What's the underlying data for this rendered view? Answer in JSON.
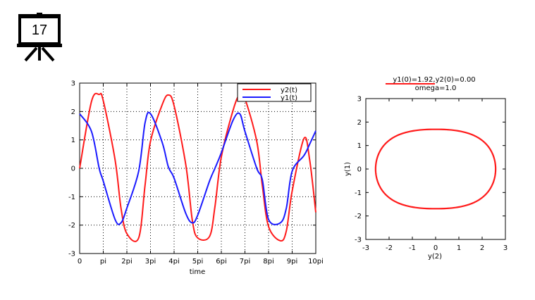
{
  "slide": {
    "number": "17",
    "icon": "projector-screen-icon"
  },
  "colors": {
    "y2": "#ff1a1a",
    "y1": "#1a1aff",
    "phase": "#ff1a1a"
  },
  "chart_data": [
    {
      "type": "line",
      "title": "",
      "xlabel": "time",
      "ylabel": "",
      "xlim": [
        0,
        31.4159
      ],
      "ylim": [
        -3,
        3
      ],
      "grid": true,
      "legend_position": "top-right",
      "x_tick_labels": [
        "0",
        "pi",
        "2pi",
        "3pi",
        "4pi",
        "5pi",
        "6pi",
        "7pi",
        "8pi",
        "9pi",
        "10pi"
      ],
      "y_tick_labels": [
        "-3",
        "-2",
        "-1",
        "0",
        "1",
        "2",
        "3"
      ],
      "x": [
        0,
        1.5708,
        2.6,
        3.1416,
        4.7124,
        5.5,
        6.2832,
        7.854,
        8.7,
        9.4248,
        10.9956,
        11.8,
        12.5664,
        14.1372,
        15.0,
        15.708,
        17.2788,
        18.0,
        18.8496,
        20.4204,
        21.3,
        21.9911,
        23.5619,
        24.3,
        25.1327,
        26.7035,
        27.5,
        28.2743,
        29.8451,
        30.6,
        31.4159
      ],
      "series": [
        {
          "name": "y2(t)",
          "values": [
            0.0,
            2.35,
            2.6,
            2.38,
            0.3,
            -1.4,
            -2.3,
            -2.45,
            -0.6,
            0.95,
            2.25,
            2.58,
            2.2,
            0.1,
            -1.85,
            -2.45,
            -2.4,
            -1.35,
            0.4,
            2.05,
            2.6,
            2.45,
            0.95,
            -0.6,
            -2.05,
            -2.55,
            -2.2,
            -0.8,
            1.05,
            0.3,
            -1.55
          ]
        },
        {
          "name": "y1(t)",
          "values": [
            1.92,
            1.3,
            0.0,
            -0.45,
            -1.8,
            -1.92,
            -1.4,
            -0.1,
            1.6,
            1.92,
            0.9,
            0.05,
            -0.35,
            -1.6,
            -1.92,
            -1.65,
            -0.45,
            0.0,
            0.55,
            1.7,
            1.92,
            1.3,
            0.0,
            -0.4,
            -1.8,
            -1.92,
            -1.4,
            -0.1,
            0.45,
            0.85,
            1.32
          ]
        }
      ]
    },
    {
      "type": "line",
      "title": "y1(0)=1.92,y2(0)=0.00",
      "subtitle": "omega=1.0",
      "xlabel": "y(2)",
      "ylabel": "y(1)",
      "xlim": [
        -3,
        3
      ],
      "ylim": [
        -3,
        3
      ],
      "grid": false,
      "x_tick_labels": [
        "-3",
        "-2",
        "-1",
        "0",
        "1",
        "2",
        "3"
      ],
      "y_tick_labels": [
        "-3",
        "-2",
        "-1",
        "0",
        "1",
        "2",
        "3"
      ],
      "curve": {
        "amplitude_y2": 2.58,
        "amplitude_y1": 1.92
      }
    }
  ]
}
